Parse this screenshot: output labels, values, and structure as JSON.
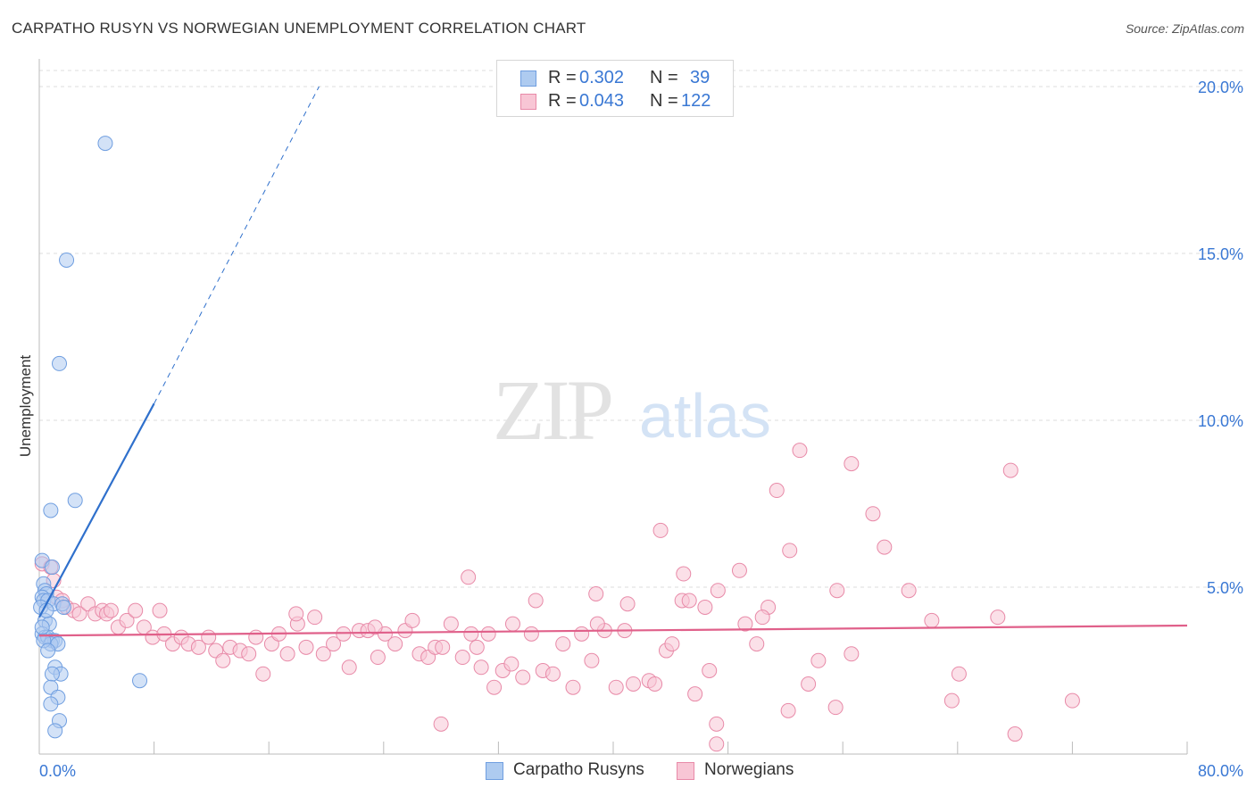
{
  "title": "CARPATHO RUSYN VS NORWEGIAN UNEMPLOYMENT CORRELATION CHART",
  "source": "Source: ZipAtlas.com",
  "watermark": {
    "zip": "ZIP",
    "atlas": "atlas"
  },
  "legend": {
    "rows": [
      {
        "r_label": "R =",
        "r_value": "0.302",
        "n_label": "N =",
        "n_value": "39",
        "color": "#aecbf0",
        "stroke": "#6f9ee0"
      },
      {
        "r_label": "R =",
        "r_value": "0.043",
        "n_label": "N =",
        "n_value": "122",
        "color": "#f8c6d5",
        "stroke": "#e88aa8"
      }
    ]
  },
  "chart_data": {
    "type": "scatter",
    "title": "CARPATHO RUSYN VS NORWEGIAN UNEMPLOYMENT CORRELATION CHART",
    "xlabel": "",
    "ylabel": "Unemployment",
    "xlim": [
      0,
      80
    ],
    "ylim": [
      0,
      20
    ],
    "x_tick_labels": [
      "0.0%",
      "80.0%"
    ],
    "y_ticks": [
      5,
      10,
      15,
      20
    ],
    "y_tick_labels": [
      "5.0%",
      "10.0%",
      "15.0%",
      "20.0%"
    ],
    "grid": true,
    "series": [
      {
        "name": "Carpatho Rusyns",
        "color": "#aecbf0",
        "stroke": "#6f9ee0",
        "trend_color": "#2f70cc",
        "trend": {
          "x0": 0,
          "y0": 4.1,
          "x1": 8.0,
          "y1": 10.5,
          "dash_to_x": 19.5,
          "dash_to_y": 20.0
        },
        "points": [
          [
            4.6,
            18.3
          ],
          [
            1.9,
            14.8
          ],
          [
            1.4,
            11.7
          ],
          [
            2.5,
            7.6
          ],
          [
            0.8,
            7.3
          ],
          [
            0.2,
            5.8
          ],
          [
            0.9,
            5.6
          ],
          [
            0.3,
            5.1
          ],
          [
            0.4,
            4.9
          ],
          [
            0.5,
            4.8
          ],
          [
            0.2,
            4.7
          ],
          [
            0.3,
            4.6
          ],
          [
            0.6,
            4.6
          ],
          [
            1.0,
            4.5
          ],
          [
            1.6,
            4.5
          ],
          [
            1.7,
            4.4
          ],
          [
            0.1,
            4.4
          ],
          [
            0.4,
            4.0
          ],
          [
            0.7,
            3.9
          ],
          [
            0.2,
            3.6
          ],
          [
            0.4,
            3.5
          ],
          [
            0.6,
            3.5
          ],
          [
            0.9,
            3.4
          ],
          [
            1.1,
            3.4
          ],
          [
            0.8,
            3.3
          ],
          [
            1.3,
            3.3
          ],
          [
            0.3,
            3.4
          ],
          [
            0.6,
            3.1
          ],
          [
            1.1,
            2.6
          ],
          [
            1.5,
            2.4
          ],
          [
            0.9,
            2.4
          ],
          [
            7.0,
            2.2
          ],
          [
            0.8,
            2.0
          ],
          [
            1.3,
            1.7
          ],
          [
            0.8,
            1.5
          ],
          [
            1.4,
            1.0
          ],
          [
            1.1,
            0.7
          ],
          [
            0.5,
            4.3
          ],
          [
            0.2,
            3.8
          ]
        ]
      },
      {
        "name": "Norwegians",
        "color": "#f8c6d5",
        "stroke": "#e88aa8",
        "trend_color": "#e0608a",
        "trend": {
          "x0": 0,
          "y0": 3.55,
          "x1": 80,
          "y1": 3.85
        },
        "points": [
          [
            53.0,
            9.1
          ],
          [
            56.6,
            8.7
          ],
          [
            67.7,
            8.5
          ],
          [
            51.4,
            7.9
          ],
          [
            58.1,
            7.2
          ],
          [
            43.3,
            6.7
          ],
          [
            52.3,
            6.1
          ],
          [
            58.9,
            6.2
          ],
          [
            44.9,
            5.4
          ],
          [
            48.8,
            5.5
          ],
          [
            29.9,
            5.3
          ],
          [
            55.6,
            4.9
          ],
          [
            60.6,
            4.9
          ],
          [
            38.8,
            4.8
          ],
          [
            47.3,
            4.9
          ],
          [
            34.6,
            4.6
          ],
          [
            41.0,
            4.5
          ],
          [
            44.8,
            4.6
          ],
          [
            45.3,
            4.6
          ],
          [
            46.4,
            4.4
          ],
          [
            50.8,
            4.4
          ],
          [
            50.4,
            4.1
          ],
          [
            0.2,
            5.7
          ],
          [
            0.8,
            5.6
          ],
          [
            1.0,
            5.2
          ],
          [
            1.2,
            4.7
          ],
          [
            1.6,
            4.6
          ],
          [
            1.9,
            4.4
          ],
          [
            2.4,
            4.3
          ],
          [
            2.8,
            4.2
          ],
          [
            3.4,
            4.5
          ],
          [
            3.9,
            4.2
          ],
          [
            4.4,
            4.3
          ],
          [
            4.7,
            4.2
          ],
          [
            5.0,
            4.3
          ],
          [
            5.5,
            3.8
          ],
          [
            6.1,
            4.0
          ],
          [
            6.7,
            4.3
          ],
          [
            7.3,
            3.8
          ],
          [
            8.4,
            4.3
          ],
          [
            7.9,
            3.5
          ],
          [
            8.7,
            3.6
          ],
          [
            9.3,
            3.3
          ],
          [
            9.9,
            3.5
          ],
          [
            10.4,
            3.3
          ],
          [
            11.1,
            3.2
          ],
          [
            11.8,
            3.5
          ],
          [
            12.3,
            3.1
          ],
          [
            12.8,
            2.8
          ],
          [
            13.3,
            3.2
          ],
          [
            14.0,
            3.1
          ],
          [
            14.6,
            3.0
          ],
          [
            15.1,
            3.5
          ],
          [
            15.6,
            2.4
          ],
          [
            16.2,
            3.3
          ],
          [
            16.7,
            3.6
          ],
          [
            17.3,
            3.0
          ],
          [
            18.0,
            3.9
          ],
          [
            18.6,
            3.2
          ],
          [
            19.2,
            4.1
          ],
          [
            19.8,
            3.0
          ],
          [
            20.5,
            3.3
          ],
          [
            21.2,
            3.6
          ],
          [
            21.6,
            2.6
          ],
          [
            22.3,
            3.7
          ],
          [
            22.9,
            3.7
          ],
          [
            23.6,
            2.9
          ],
          [
            24.1,
            3.6
          ],
          [
            24.8,
            3.3
          ],
          [
            25.5,
            3.7
          ],
          [
            26.0,
            4.0
          ],
          [
            26.5,
            3.0
          ],
          [
            27.1,
            2.9
          ],
          [
            27.6,
            3.2
          ],
          [
            28.1,
            3.2
          ],
          [
            28.7,
            3.9
          ],
          [
            29.5,
            2.9
          ],
          [
            30.1,
            3.6
          ],
          [
            30.8,
            2.6
          ],
          [
            31.3,
            3.6
          ],
          [
            31.7,
            2.0
          ],
          [
            32.3,
            2.5
          ],
          [
            32.9,
            2.7
          ],
          [
            33.7,
            2.3
          ],
          [
            34.3,
            3.6
          ],
          [
            35.1,
            2.5
          ],
          [
            35.8,
            2.4
          ],
          [
            36.5,
            3.3
          ],
          [
            37.2,
            2.0
          ],
          [
            37.8,
            3.6
          ],
          [
            38.5,
            2.8
          ],
          [
            39.4,
            3.7
          ],
          [
            40.2,
            2.0
          ],
          [
            40.8,
            3.7
          ],
          [
            41.4,
            2.1
          ],
          [
            42.5,
            2.2
          ],
          [
            42.9,
            2.1
          ],
          [
            43.7,
            3.1
          ],
          [
            44.1,
            3.3
          ],
          [
            45.7,
            1.8
          ],
          [
            46.7,
            2.5
          ],
          [
            47.2,
            0.9
          ],
          [
            47.2,
            0.3
          ],
          [
            49.2,
            3.9
          ],
          [
            50.0,
            3.3
          ],
          [
            52.2,
            1.3
          ],
          [
            53.6,
            2.1
          ],
          [
            54.3,
            2.8
          ],
          [
            55.5,
            1.4
          ],
          [
            56.6,
            3.0
          ],
          [
            62.2,
            4.0
          ],
          [
            64.1,
            2.4
          ],
          [
            63.6,
            1.6
          ],
          [
            66.8,
            4.1
          ],
          [
            68.0,
            0.6
          ],
          [
            72.0,
            1.6
          ],
          [
            28.0,
            0.9
          ],
          [
            38.9,
            3.9
          ],
          [
            33.0,
            3.9
          ],
          [
            23.4,
            3.8
          ],
          [
            17.9,
            4.2
          ],
          [
            30.5,
            3.2
          ]
        ]
      }
    ]
  },
  "bottom_legend": [
    {
      "label": "Carpatho Rusyns",
      "color": "#aecbf0",
      "stroke": "#6f9ee0"
    },
    {
      "label": "Norwegians",
      "color": "#f8c6d5",
      "stroke": "#e88aa8"
    }
  ]
}
